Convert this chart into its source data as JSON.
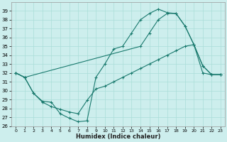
{
  "bg_color": "#cdeeed",
  "grid_color": "#aaddd8",
  "line_color": "#1a7a6e",
  "xlim": [
    -0.5,
    23.5
  ],
  "ylim": [
    26,
    40
  ],
  "xlabel": "Humidex (Indice chaleur)",
  "xticks": [
    0,
    1,
    2,
    3,
    4,
    5,
    6,
    7,
    8,
    9,
    10,
    11,
    12,
    13,
    14,
    15,
    16,
    17,
    18,
    19,
    20,
    21,
    22,
    23
  ],
  "yticks": [
    26,
    27,
    28,
    29,
    30,
    31,
    32,
    33,
    34,
    35,
    36,
    37,
    38,
    39
  ],
  "s1_x": [
    0,
    1,
    2,
    3,
    4,
    5,
    6,
    7,
    8,
    9,
    10,
    11,
    12,
    13,
    14,
    15,
    16,
    17,
    18,
    19,
    20,
    21,
    22,
    23
  ],
  "s1_y": [
    32,
    31.5,
    29.7,
    28.8,
    28.7,
    27.4,
    26.9,
    26.5,
    26.6,
    31.5,
    33.0,
    34.7,
    35.0,
    36.5,
    38.0,
    38.7,
    39.2,
    38.8,
    38.7,
    37.3,
    35.2,
    32.8,
    31.8,
    31.8
  ],
  "s2_x": [
    0,
    1,
    2,
    3,
    4,
    5,
    6,
    7,
    8,
    9,
    10,
    11,
    12,
    13,
    14,
    15,
    16,
    17,
    18,
    19,
    20,
    21,
    22,
    23
  ],
  "s2_y": [
    32,
    31.5,
    29.7,
    28.7,
    28.2,
    27.9,
    27.6,
    27.4,
    28.9,
    30.2,
    30.5,
    31.0,
    31.5,
    32.0,
    32.5,
    33.0,
    33.5,
    34.0,
    34.5,
    35.0,
    35.2,
    32.0,
    31.8,
    31.8
  ],
  "s3_x": [
    0,
    1,
    14,
    15,
    16,
    17,
    18,
    19,
    20,
    21,
    22,
    23
  ],
  "s3_y": [
    32,
    31.5,
    35.0,
    36.5,
    38.0,
    38.7,
    38.7,
    37.3,
    35.2,
    32.8,
    31.8,
    31.8
  ]
}
